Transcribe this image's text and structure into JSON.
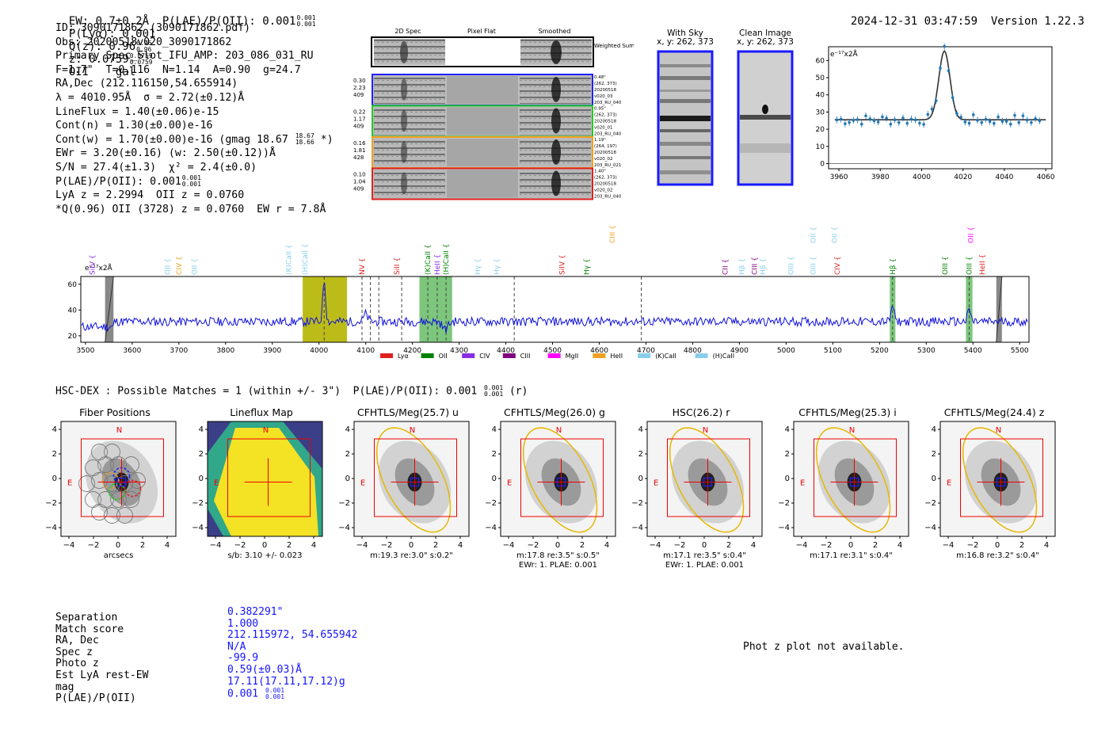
{
  "header": {
    "summary": "EW: 0.7±0.2Å  P(LAE)/P(OII): 0.001",
    "summary_sup": "0.001",
    "summary_sub": "0.001",
    "plya": "P(Lyα): 0.001",
    "qz": "Q(z): 0.96",
    "qz_sup": "0.96",
    "qz_sub": "0.96",
    "z": "z: 0.0759",
    "z_sup": "0.0759",
    "z_sub": "0.0759",
    "class": "OII    gal",
    "timestamp": "2024-12-31 03:47:59",
    "version": "Version 1.22.3"
  },
  "info": {
    "id": "ID: 3090171862 (3090171862.pdf)",
    "obs": "Obs: 20200518v020_3090171862",
    "primary": "Primary Spec_Slot_IFU_AMP: 203_086_031_RU",
    "fit": "F=1.7\"  T=0.116  N=1.14  A=0.90  g=24.7",
    "radec": "RA,Dec (212.116150,54.655914)",
    "lambda": "λ = 4010.95Å  σ = 2.72(±0.12)Å",
    "lineflux": "LineFlux = 1.40(±0.06)e-15",
    "contn": "Cont(n) = 1.30(±0.00)e-16",
    "contw": "Cont(w) = 1.70(±0.00)e-16 (gmag 18.67",
    "contw_sup": "18.67",
    "contw_sub": "18.66",
    "contw_tail": "*)",
    "ewr": "EWr = 3.20(±0.16) (w: 2.50(±0.12))Å",
    "sn": "S/N = 27.4(±1.3)  χ² = 2.4(±0.0)",
    "plae": "P(LAE)/P(OII): 0.001",
    "plae_sup": "0.001",
    "plae_sub": "0.001",
    "lya": "LyA z = 2.2994  OII z = 0.0760",
    "q": "*Q(0.96) OII (3728) z = 0.0760  EW r = 7.8Å"
  },
  "spec2d": {
    "headers": [
      "2D Spec",
      "Pixel Flat",
      "Smoothed"
    ],
    "weighted_label": "Weighted Sum",
    "rows": [
      {
        "left": [
          "0.30",
          "2.23",
          "409"
        ],
        "right": [
          "0.48\"",
          "(262, 373)",
          "20200518",
          "v020_03",
          "203_RU_040"
        ],
        "color": "#2020ff"
      },
      {
        "left": [
          "0.22",
          "1.17",
          "409"
        ],
        "right": [
          "0.95\"",
          "(262, 373)",
          "20200518",
          "v020_01",
          "203_RU_040"
        ],
        "color": "#20cc20"
      },
      {
        "left": [
          "0.16",
          "1.81",
          "428"
        ],
        "right": [
          "1.19\"",
          "(264, 197)",
          "20200518",
          "v020_02",
          "203_RU_021"
        ],
        "color": "#f0a020"
      },
      {
        "left": [
          "0.10",
          "1.04",
          "409"
        ],
        "right": [
          "1.40\"",
          "(262, 373)",
          "20200518",
          "v020_02",
          "203_RU_040"
        ],
        "color": "#e02020"
      }
    ]
  },
  "cutouts": {
    "with_sky": "With Sky",
    "with_sky_xy": "x, y: 262, 373",
    "clean": "Clean Image",
    "clean_xy": "x, y: 262, 373"
  },
  "zoom_plot": {
    "unit": "e⁻¹⁷x2Å",
    "yticks": [
      "0",
      "10",
      "20",
      "30",
      "40",
      "50",
      "60"
    ],
    "xticks": [
      "3960",
      "3980",
      "4000",
      "4020",
      "4040",
      "4060"
    ]
  },
  "chart_data": {
    "type": "line",
    "title": "",
    "ylabel": "e⁻¹⁷x2Å",
    "xlim": [
      3490,
      5520
    ],
    "ylim": [
      15,
      66
    ],
    "xticks": [
      3500,
      3600,
      3700,
      3800,
      3900,
      4000,
      4100,
      4200,
      4300,
      4400,
      4500,
      4600,
      4700,
      4800,
      4900,
      5000,
      5100,
      5200,
      5300,
      5400,
      5500
    ],
    "yticks": [
      20,
      40,
      60
    ],
    "baseline": 31,
    "peaks": [
      {
        "x": 4011,
        "amp": 33,
        "width": 3
      },
      {
        "x": 5228,
        "amp": 13,
        "width": 3
      },
      {
        "x": 5392,
        "amp": 10,
        "width": 3
      },
      {
        "x": 4270,
        "amp": -6,
        "width": 6
      },
      {
        "x": 4100,
        "amp": 6,
        "width": 4
      }
    ],
    "line_labels": [
      {
        "name": "SiIV",
        "x": 3515,
        "color": "#8a2be2"
      },
      {
        "name": "OII",
        "x": 3676,
        "color": "#87ceeb"
      },
      {
        "name": "CIV",
        "x": 3700,
        "color": "#f0a020"
      },
      {
        "name": "OII",
        "x": 3733,
        "color": "#87ceeb"
      },
      {
        "name": "(K)CaII",
        "x": 3935,
        "color": "#87ceeb"
      },
      {
        "name": "(H)CaII",
        "x": 3970,
        "color": "#87ceeb"
      },
      {
        "name": "NV",
        "x": 4092,
        "color": "#e02020"
      },
      {
        "name": "SiII",
        "x": 4167,
        "color": "#e02020"
      },
      {
        "name": "(K)CaII",
        "x": 4233,
        "color": "#008000"
      },
      {
        "name": "HeII",
        "x": 4253,
        "color": "#8a2be2"
      },
      {
        "name": "(H)CaII",
        "x": 4272,
        "color": "#008000"
      },
      {
        "name": "Hγ",
        "x": 4340,
        "color": "#87ceeb"
      },
      {
        "name": "Hγ",
        "x": 4380,
        "color": "#87ceeb"
      },
      {
        "name": "SiIV",
        "x": 4520,
        "color": "#e02020"
      },
      {
        "name": "Hγ",
        "x": 4573,
        "color": "#008000"
      },
      {
        "name": "CIII",
        "x": 4628,
        "color": "#f0a020"
      },
      {
        "name": "CII",
        "x": 4870,
        "color": "#800080"
      },
      {
        "name": "Hβ",
        "x": 4905,
        "color": "#87ceeb"
      },
      {
        "name": "CIII",
        "x": 4932,
        "color": "#800080"
      },
      {
        "name": "Hβ",
        "x": 4950,
        "color": "#87ceeb"
      },
      {
        "name": "OIII",
        "x": 5010,
        "color": "#87ceeb"
      },
      {
        "name": "OIII",
        "x": 5058,
        "color": "#87ceeb"
      },
      {
        "name": "OII",
        "x": 5058,
        "color": "#87ceeb"
      },
      {
        "name": "OII",
        "x": 5104,
        "color": "#87ceeb"
      },
      {
        "name": "CIV",
        "x": 5110,
        "color": "#e02020"
      },
      {
        "name": "Hβ",
        "x": 5228,
        "color": "#008000"
      },
      {
        "name": "OII",
        "x": 5395,
        "color": "#ff00ff"
      },
      {
        "name": "OIII",
        "x": 5340,
        "color": "#008000"
      },
      {
        "name": "OIII",
        "x": 5392,
        "color": "#008000"
      },
      {
        "name": "HeII",
        "x": 5420,
        "color": "#e02020"
      }
    ],
    "legend": [
      {
        "name": "Lyα",
        "color": "#e02020"
      },
      {
        "name": "OII",
        "color": "#008000"
      },
      {
        "name": "CIV",
        "color": "#8a2be2"
      },
      {
        "name": "CIII",
        "color": "#800080"
      },
      {
        "name": "MgII",
        "color": "#ff00ff"
      },
      {
        "name": "HeII",
        "color": "#f0a020"
      },
      {
        "name": "(K)CaII",
        "color": "#87ceeb"
      },
      {
        "name": "(H)CaII",
        "color": "#87ceeb"
      }
    ]
  },
  "hsc": {
    "title": "HSC-DEX : Possible Matches = 1 (within +/- 3\")  P(LAE)/P(OII): 0.001",
    "title_sup": "0.001",
    "title_sub": "0.001",
    "title_tail": "(r)",
    "panels": [
      {
        "title": "Fiber Positions",
        "caption1": "arcsecs",
        "caption2": ""
      },
      {
        "title": "Lineflux Map",
        "caption1": "s/b: 3.10 +/- 0.023",
        "caption2": ""
      },
      {
        "title": "CFHTLS/Meg(25.7) u",
        "caption1": "m:19.3  re:3.0\"  s:0.2\"",
        "caption2": ""
      },
      {
        "title": "CFHTLS/Meg(26.0) g",
        "caption1": "m:17.8  re:3.5\"  s:0.5\"",
        "caption2": "EWr: 1. PLAE: 0.001"
      },
      {
        "title": "HSC(26.2) r",
        "caption1": "m:17.1  re:3.5\"  s:0.4\"",
        "caption2": "EWr: 1. PLAE: 0.001"
      },
      {
        "title": "CFHTLS/Meg(25.3) i",
        "caption1": "m:17.1  re:3.1\"  s:0.4\"",
        "caption2": ""
      },
      {
        "title": "CFHTLS/Meg(24.4) z",
        "caption1": "m:16.8  re:3.2\"  s:0.4\"",
        "caption2": ""
      }
    ],
    "ticks": [
      "4",
      "2",
      "0",
      "−2",
      "−4"
    ],
    "xticks": [
      "−4",
      "−2",
      "0",
      "2",
      "4"
    ],
    "north": "N",
    "east": "E"
  },
  "match": {
    "labels": [
      "Separation",
      "Match score",
      "RA, Dec",
      "Spec z",
      "Photo z",
      "Est LyA rest-EW",
      "mag",
      "P(LAE)/P(OII)"
    ],
    "values": [
      "0.382291\"",
      "1.000",
      "212.115972, 54.655942",
      "N/A",
      "-99.9",
      "0.59(±0.03)Å",
      "17.11(17.11,17.12)g",
      "0.001"
    ],
    "plae_sup": "0.001",
    "plae_sub": "0.001",
    "photz_note": "Phot z plot not available."
  }
}
